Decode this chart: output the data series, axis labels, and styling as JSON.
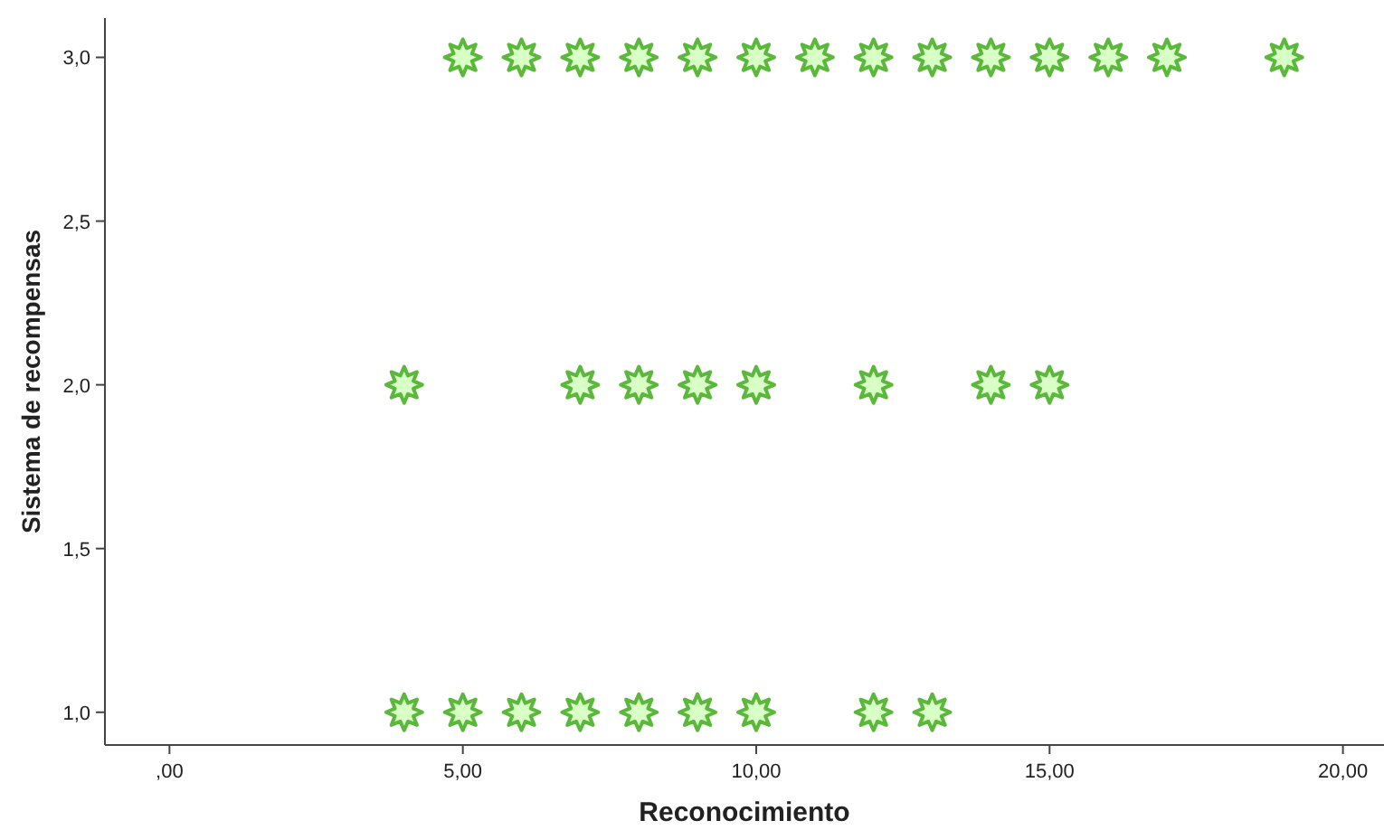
{
  "chart_data": {
    "type": "scatter",
    "xlabel": "Reconocimiento",
    "ylabel": "Sistema de recompensas",
    "xlim": [
      -1.1,
      20.7
    ],
    "ylim": [
      0.9,
      3.12
    ],
    "xticks": [
      {
        "value": 0,
        "label": ",00"
      },
      {
        "value": 5,
        "label": "5,00"
      },
      {
        "value": 10,
        "label": "10,00"
      },
      {
        "value": 15,
        "label": "15,00"
      },
      {
        "value": 20,
        "label": "20,00"
      }
    ],
    "yticks": [
      {
        "value": 1,
        "label": "1,0"
      },
      {
        "value": 1.5,
        "label": "1,5"
      },
      {
        "value": 2,
        "label": "2,0"
      },
      {
        "value": 2.5,
        "label": "2,5"
      },
      {
        "value": 3,
        "label": "3,0"
      }
    ],
    "marker": "star",
    "grid": false,
    "series": [
      {
        "color": "#5cb83c",
        "x": [
          5,
          6,
          7,
          8,
          9,
          10,
          11,
          12,
          13,
          14,
          15,
          16,
          17,
          19,
          4,
          7,
          8,
          9,
          10,
          12,
          14,
          15,
          4,
          5,
          6,
          7,
          8,
          9,
          10,
          12,
          13
        ],
        "values": [
          3,
          3,
          3,
          3,
          3,
          3,
          3,
          3,
          3,
          3,
          3,
          3,
          3,
          3,
          2,
          2,
          2,
          2,
          2,
          2,
          2,
          2,
          1,
          1,
          1,
          1,
          1,
          1,
          1,
          1,
          1
        ]
      }
    ]
  }
}
